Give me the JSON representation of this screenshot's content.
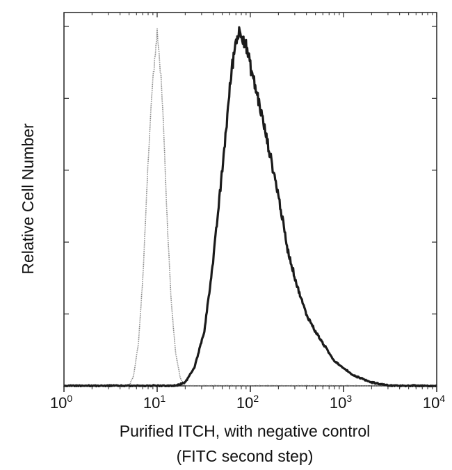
{
  "chart_data": {
    "type": "line",
    "title": "",
    "xlabel": "Purified ITCH, with negative control",
    "xlabel_line2": "(FITC second step)",
    "ylabel": "Relative Cell Number",
    "x_scale": "log",
    "xlim": [
      1,
      10000
    ],
    "ylim": [
      0,
      1
    ],
    "x_ticks": [
      {
        "base": "10",
        "exp": "0",
        "value": 1
      },
      {
        "base": "10",
        "exp": "1",
        "value": 10
      },
      {
        "base": "10",
        "exp": "2",
        "value": 100
      },
      {
        "base": "10",
        "exp": "3",
        "value": 1000
      },
      {
        "base": "10",
        "exp": "4",
        "value": 10000
      }
    ],
    "y_ticks": [
      0,
      0.2,
      0.4,
      0.6,
      0.8,
      1.0
    ],
    "grid": false,
    "legend": "none",
    "series": [
      {
        "style": "dotted-light",
        "color": "#8a8a8a",
        "x": [
          5.0,
          5.6,
          6.3,
          7.1,
          7.9,
          8.9,
          10.0,
          10.6,
          11.2,
          11.9,
          12.6,
          14.1,
          15.8,
          17.8,
          20.0
        ],
        "y": [
          0.0,
          0.03,
          0.12,
          0.32,
          0.6,
          0.84,
          0.98,
          0.91,
          0.83,
          0.67,
          0.5,
          0.24,
          0.09,
          0.02,
          0.0
        ]
      },
      {
        "style": "solid-dark",
        "color": "#1a1a1a",
        "x": [
          16,
          20,
          25,
          32,
          40,
          50,
          63,
          71,
          79,
          89,
          100,
          126,
          158,
          200,
          251,
          316,
          398,
          501,
          631,
          794,
          1000,
          1259,
          1585,
          2000,
          3162,
          10000
        ],
        "y": [
          0.0,
          0.01,
          0.05,
          0.15,
          0.35,
          0.6,
          0.88,
          0.97,
          0.99,
          0.95,
          0.89,
          0.78,
          0.66,
          0.53,
          0.38,
          0.28,
          0.2,
          0.15,
          0.11,
          0.07,
          0.05,
          0.03,
          0.02,
          0.01,
          0.0,
          0.0
        ]
      }
    ]
  }
}
